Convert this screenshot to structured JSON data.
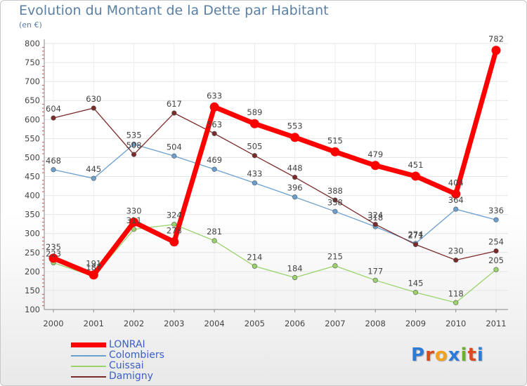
{
  "title": "Evolution du Montant de la Dette par Habitant",
  "unit_label": "(en €)",
  "logo": {
    "text": "Proxiti",
    "colors": [
      "#2e7bd6",
      "#d94a1e",
      "#f2a11d",
      "#2e7bd6",
      "#69b22a",
      "#d94a1e",
      "#2e7bd6"
    ]
  },
  "chart_data": {
    "type": "line",
    "title": "Evolution du Montant de la Dette par Habitant",
    "ylabel": "(en €)",
    "x": [
      "2000",
      "2001",
      "2002",
      "2003",
      "2004",
      "2005",
      "2006",
      "2007",
      "2008",
      "2009",
      "2010",
      "2011"
    ],
    "ylim": [
      100,
      800
    ],
    "yticks": [
      100,
      150,
      200,
      250,
      300,
      350,
      400,
      450,
      500,
      550,
      600,
      650,
      700,
      750,
      800
    ],
    "grid": true,
    "legend_position": "bottom-left",
    "series": [
      {
        "name": "LONRAI",
        "color": "#ff0000",
        "emphasis": true,
        "values": [
          235,
          191,
          330,
          278,
          633,
          589,
          553,
          515,
          479,
          451,
          404,
          782
        ]
      },
      {
        "name": "Colombiers",
        "color": "#6b9fce",
        "values": [
          468,
          445,
          535,
          504,
          469,
          433,
          396,
          358,
          318,
          274,
          364,
          336
        ]
      },
      {
        "name": "Cuissai",
        "color": "#99d36a",
        "values": [
          223,
          187,
          311,
          324,
          281,
          214,
          184,
          215,
          177,
          145,
          118,
          205
        ]
      },
      {
        "name": "Damigny",
        "color": "#7b2a2a",
        "values": [
          604,
          630,
          508,
          617,
          563,
          505,
          448,
          388,
          324,
          271,
          230,
          254
        ]
      }
    ]
  }
}
